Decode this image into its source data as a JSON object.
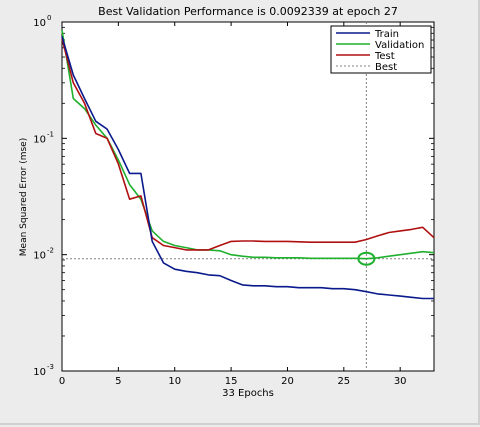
{
  "chart_data": {
    "type": "line",
    "title": "Best Validation Performance is 0.0092339 at epoch 27",
    "xlabel": "33 Epochs",
    "ylabel": "Mean Squared Error  (mse)",
    "x_scale": "linear",
    "y_scale": "log",
    "xlim": [
      0,
      33
    ],
    "ylim": [
      0.001,
      1
    ],
    "x_ticks": [
      0,
      5,
      10,
      15,
      20,
      25,
      30
    ],
    "x_tick_labels": [
      "0",
      "5",
      "10",
      "15",
      "20",
      "25",
      "30"
    ],
    "y_ticks": [
      0.001,
      0.01,
      0.1,
      1
    ],
    "y_tick_labels": [
      {
        "base": "10",
        "exp": "-3"
      },
      {
        "base": "10",
        "exp": "-2"
      },
      {
        "base": "10",
        "exp": "-1"
      },
      {
        "base": "10",
        "exp": "0"
      }
    ],
    "grid": false,
    "legend_position": "top-right",
    "series": [
      {
        "name": "Train",
        "color": "#0a1a8c",
        "x": [
          0,
          1,
          2,
          3,
          4,
          5,
          6,
          7,
          8,
          9,
          10,
          11,
          12,
          13,
          14,
          15,
          16,
          17,
          18,
          19,
          20,
          21,
          22,
          23,
          24,
          25,
          26,
          27,
          28,
          29,
          30,
          31,
          32,
          33
        ],
        "y": [
          0.75,
          0.35,
          0.22,
          0.14,
          0.12,
          0.08,
          0.05,
          0.05,
          0.013,
          0.0085,
          0.0075,
          0.0072,
          0.007,
          0.0067,
          0.0066,
          0.006,
          0.0055,
          0.0054,
          0.0054,
          0.0053,
          0.0053,
          0.0052,
          0.0052,
          0.0052,
          0.0051,
          0.0051,
          0.005,
          0.0048,
          0.0046,
          0.0045,
          0.0044,
          0.0043,
          0.0042,
          0.0042
        ]
      },
      {
        "name": "Validation",
        "color": "#1fb02e",
        "x": [
          0,
          1,
          2,
          3,
          4,
          5,
          6,
          7,
          8,
          9,
          10,
          11,
          12,
          13,
          14,
          15,
          16,
          17,
          18,
          19,
          20,
          21,
          22,
          23,
          24,
          25,
          26,
          27,
          28,
          29,
          30,
          31,
          32,
          33
        ],
        "y": [
          0.85,
          0.22,
          0.18,
          0.13,
          0.1,
          0.065,
          0.04,
          0.03,
          0.016,
          0.013,
          0.012,
          0.0115,
          0.011,
          0.011,
          0.0108,
          0.01,
          0.0097,
          0.0095,
          0.0095,
          0.0094,
          0.0094,
          0.0094,
          0.0093,
          0.0093,
          0.0093,
          0.0093,
          0.0093,
          0.0092339,
          0.0094,
          0.0097,
          0.01,
          0.0103,
          0.0106,
          0.0104
        ]
      },
      {
        "name": "Test",
        "color": "#b01010",
        "x": [
          0,
          1,
          2,
          3,
          4,
          5,
          6,
          7,
          8,
          9,
          10,
          11,
          12,
          13,
          14,
          15,
          16,
          17,
          18,
          19,
          20,
          21,
          22,
          23,
          24,
          25,
          26,
          27,
          28,
          29,
          30,
          31,
          32,
          33
        ],
        "y": [
          0.72,
          0.3,
          0.2,
          0.11,
          0.1,
          0.06,
          0.03,
          0.032,
          0.014,
          0.012,
          0.0115,
          0.011,
          0.011,
          0.011,
          0.012,
          0.013,
          0.0131,
          0.0131,
          0.013,
          0.013,
          0.013,
          0.0129,
          0.0128,
          0.0128,
          0.0128,
          0.0128,
          0.0128,
          0.0135,
          0.0145,
          0.0155,
          0.016,
          0.0165,
          0.0172,
          0.014
        ]
      },
      {
        "name": "Best",
        "color": "#808080",
        "style": "dotted"
      }
    ],
    "best": {
      "epoch": 27,
      "value": 0.0092339
    }
  }
}
